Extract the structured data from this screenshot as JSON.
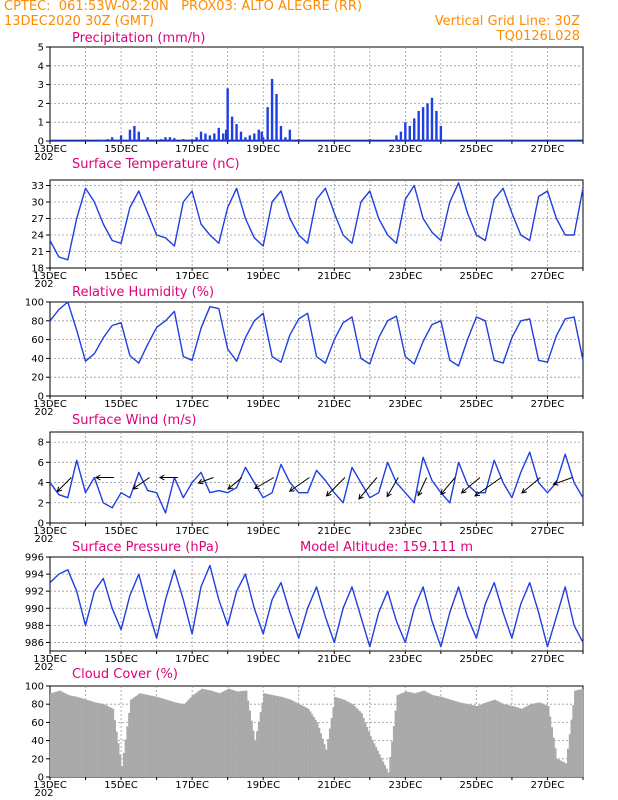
{
  "header": {
    "line1_left": "CPTEC:  061:53W-02:20N   PROX03: ALTO ALEGRE (RR)",
    "line2_left": "13DEC2020 30Z (GMT)",
    "line2_right": "Vertical Grid Line: 30Z",
    "line3_right": "TQ0126L028"
  },
  "colors": {
    "header": "#ff8c00",
    "title": "#e0007a",
    "series": "#1f3fe0",
    "cloud": "#a9a9a9",
    "arrow": "#000000"
  },
  "x_axis": {
    "tick_labels": [
      "13DEC",
      "15DEC",
      "17DEC",
      "19DEC",
      "21DEC",
      "23DEC",
      "25DEC",
      "27DEC"
    ],
    "stray_label": "202"
  },
  "chart_data": [
    {
      "type": "bar",
      "title": "Precipitation (mm/h)",
      "ylim": [
        0,
        5
      ],
      "yticks": [
        "0",
        "1",
        "2",
        "3",
        "4",
        "5"
      ],
      "x": [
        "14DEC12",
        "14DEC15",
        "14DEC18",
        "15DEC00",
        "15DEC06",
        "15DEC09",
        "15DEC12",
        "15DEC18",
        "16DEC03",
        "16DEC06",
        "16DEC09",
        "16DEC12",
        "16DEC18",
        "17DEC00",
        "17DEC03",
        "17DEC06",
        "17DEC09",
        "17DEC12",
        "17DEC15",
        "17DEC18",
        "17DEC21",
        "17DEC23",
        "18DEC00",
        "18DEC03",
        "18DEC06",
        "18DEC09",
        "18DEC12",
        "18DEC15",
        "18DEC18",
        "18DEC21",
        "18DEC23",
        "19DEC00",
        "19DEC03",
        "19DEC06",
        "19DEC09",
        "19DEC12",
        "19DEC15",
        "19DEC18",
        "20DEC00",
        "22DEC00",
        "22DEC18",
        "22DEC21",
        "23DEC00",
        "23DEC03",
        "23DEC06",
        "23DEC09",
        "23DEC12",
        "23DEC15",
        "23DEC18",
        "23DEC21",
        "24DEC00"
      ],
      "values": [
        0.05,
        0.1,
        0.2,
        0.3,
        0.6,
        0.8,
        0.5,
        0.2,
        0.1,
        0.2,
        0.2,
        0.15,
        0.1,
        0.1,
        0.2,
        0.5,
        0.4,
        0.3,
        0.4,
        0.7,
        0.4,
        0.6,
        2.8,
        1.3,
        0.9,
        0.5,
        0.2,
        0.3,
        0.4,
        0.6,
        0.5,
        0.2,
        1.8,
        3.3,
        2.5,
        0.8,
        0.2,
        0.6,
        0.1,
        0.1,
        0.3,
        0.5,
        1.0,
        0.8,
        1.2,
        1.6,
        1.8,
        2.0,
        2.3,
        1.6,
        0.8
      ]
    },
    {
      "type": "line",
      "title": "Surface Temperature (nC)",
      "ylim": [
        18,
        34
      ],
      "yticks": [
        "18",
        "21",
        "24",
        "27",
        "30",
        "33"
      ],
      "x_days": [
        0,
        0.25,
        0.5,
        0.75,
        1,
        1.25,
        1.5,
        1.75,
        2,
        2.25,
        2.5,
        2.75,
        3,
        3.25,
        3.5,
        3.75,
        4,
        4.25,
        4.5,
        4.75,
        5,
        5.25,
        5.5,
        5.75,
        6,
        6.25,
        6.5,
        6.75,
        7,
        7.25,
        7.5,
        7.75,
        8,
        8.25,
        8.5,
        8.75,
        9,
        9.25,
        9.5,
        9.75,
        10,
        10.25,
        10.5,
        10.75,
        11,
        11.25,
        11.5,
        11.75,
        12,
        12.25,
        12.5,
        12.75,
        13,
        13.25,
        13.5,
        13.75,
        14,
        14.25,
        14.5,
        14.75,
        15
      ],
      "series": [
        {
          "values": [
            23,
            20,
            19.5,
            27,
            32.5,
            30,
            26,
            23,
            22.5,
            29,
            32,
            28,
            24,
            23.5,
            22,
            30,
            32,
            26,
            24,
            22.5,
            29,
            32.5,
            27,
            23.5,
            22,
            30,
            32,
            27,
            24,
            22.5,
            30.5,
            32.5,
            28,
            24,
            22.5,
            30,
            32,
            27,
            24,
            22.5,
            30.5,
            33,
            27,
            24.5,
            23,
            30,
            33.5,
            28,
            24,
            23,
            30.5,
            32.5,
            28,
            24,
            23,
            31,
            32,
            27,
            24,
            24,
            32.5
          ]
        }
      ]
    },
    {
      "type": "line",
      "title": "Relative Humidity (%)",
      "ylim": [
        0,
        100
      ],
      "yticks": [
        "0",
        "20",
        "40",
        "60",
        "80",
        "100"
      ],
      "x_days": [
        0,
        0.25,
        0.5,
        0.75,
        1,
        1.25,
        1.5,
        1.75,
        2,
        2.25,
        2.5,
        2.75,
        3,
        3.25,
        3.5,
        3.75,
        4,
        4.25,
        4.5,
        4.75,
        5,
        5.25,
        5.5,
        5.75,
        6,
        6.25,
        6.5,
        6.75,
        7,
        7.25,
        7.5,
        7.75,
        8,
        8.25,
        8.5,
        8.75,
        9,
        9.25,
        9.5,
        9.75,
        10,
        10.25,
        10.5,
        10.75,
        11,
        11.25,
        11.5,
        11.75,
        12,
        12.25,
        12.5,
        12.75,
        13,
        13.25,
        13.5,
        13.75,
        14,
        14.25,
        14.5,
        14.75,
        15
      ],
      "series": [
        {
          "values": [
            80,
            92,
            100,
            70,
            37,
            45,
            62,
            75,
            78,
            43,
            35,
            55,
            73,
            80,
            90,
            42,
            38,
            72,
            95,
            93,
            50,
            37,
            62,
            80,
            88,
            42,
            36,
            65,
            82,
            88,
            42,
            35,
            60,
            78,
            84,
            40,
            34,
            62,
            80,
            85,
            42,
            34,
            58,
            76,
            80,
            38,
            32,
            60,
            84,
            80,
            38,
            35,
            62,
            80,
            82,
            38,
            36,
            64,
            82,
            84,
            38
          ]
        }
      ]
    },
    {
      "type": "line",
      "title": "Surface Wind (m/s)",
      "ylim": [
        0,
        9
      ],
      "yticks": [
        "0",
        "2",
        "4",
        "6",
        "8"
      ],
      "x_days": [
        0,
        0.25,
        0.5,
        0.75,
        1,
        1.25,
        1.5,
        1.75,
        2,
        2.25,
        2.5,
        2.75,
        3,
        3.25,
        3.5,
        3.75,
        4,
        4.25,
        4.5,
        4.75,
        5,
        5.25,
        5.5,
        5.75,
        6,
        6.25,
        6.5,
        6.75,
        7,
        7.25,
        7.5,
        7.75,
        8,
        8.25,
        8.5,
        8.75,
        9,
        9.25,
        9.5,
        9.75,
        10,
        10.25,
        10.5,
        10.75,
        11,
        11.25,
        11.5,
        11.75,
        12,
        12.25,
        12.5,
        12.75,
        13,
        13.25,
        13.5,
        13.75,
        14,
        14.25,
        14.5,
        14.75,
        15
      ],
      "series": [
        {
          "values": [
            4,
            2.8,
            2.5,
            6.2,
            3,
            4.5,
            2,
            1.5,
            3,
            2.5,
            5,
            3.2,
            3,
            1,
            4.5,
            2.5,
            4,
            5,
            3,
            3.2,
            3,
            3.5,
            5.5,
            4,
            2.5,
            3,
            5.8,
            4,
            3,
            3,
            5.2,
            4.2,
            3,
            2,
            5.5,
            4,
            2.5,
            3,
            6,
            4,
            3,
            2,
            6.5,
            4.2,
            3,
            2,
            6,
            3.8,
            3,
            3,
            6.2,
            4,
            2.5,
            5,
            7,
            4,
            3,
            4,
            6.8,
            4,
            2.5
          ]
        }
      ],
      "barbs": {
        "x_days": [
          0.6,
          1.8,
          2.8,
          3.6,
          4.6,
          5.4,
          6.3,
          7.3,
          8.3,
          9.2,
          9.8,
          10.6,
          11.4,
          12.1,
          12.7,
          13.8,
          14.7
        ],
        "angles_deg": [
          225,
          180,
          215,
          180,
          200,
          220,
          210,
          215,
          225,
          230,
          240,
          245,
          230,
          220,
          215,
          220,
          200
        ],
        "lengths": [
          20,
          18,
          20,
          18,
          16,
          18,
          22,
          24,
          26,
          28,
          22,
          20,
          22,
          24,
          32,
          24,
          20
        ]
      }
    },
    {
      "type": "line",
      "title": "Surface Pressure (hPa)",
      "annotation": "Model Altitude: 159.111 m",
      "ylim": [
        985,
        996
      ],
      "yticks": [
        "986",
        "988",
        "990",
        "992",
        "994",
        "996"
      ],
      "x_days": [
        0,
        0.25,
        0.5,
        0.75,
        1,
        1.25,
        1.5,
        1.75,
        2,
        2.25,
        2.5,
        2.75,
        3,
        3.25,
        3.5,
        3.75,
        4,
        4.25,
        4.5,
        4.75,
        5,
        5.25,
        5.5,
        5.75,
        6,
        6.25,
        6.5,
        6.75,
        7,
        7.25,
        7.5,
        7.75,
        8,
        8.25,
        8.5,
        8.75,
        9,
        9.25,
        9.5,
        9.75,
        10,
        10.25,
        10.5,
        10.75,
        11,
        11.25,
        11.5,
        11.75,
        12,
        12.25,
        12.5,
        12.75,
        13,
        13.25,
        13.5,
        13.75,
        14,
        14.25,
        14.5,
        14.75,
        15
      ],
      "series": [
        {
          "values": [
            993,
            994,
            994.5,
            992,
            988,
            992,
            993.5,
            990,
            987.5,
            991.5,
            994,
            990,
            986.5,
            991,
            994.5,
            991,
            987,
            992.5,
            995,
            991,
            988,
            992,
            994,
            990,
            987,
            991,
            993,
            989.5,
            986.5,
            990,
            992.5,
            989,
            986,
            990,
            992.5,
            989,
            985.5,
            989.5,
            992,
            988.5,
            986,
            990,
            992.5,
            988.5,
            985.5,
            989.5,
            992.5,
            989,
            986.5,
            990.5,
            993,
            989.5,
            986.5,
            990.5,
            993,
            989.5,
            985.5,
            989,
            992.5,
            988,
            986
          ]
        }
      ]
    },
    {
      "type": "area",
      "title": "Cloud Cover (%)",
      "ylim": [
        0,
        100
      ],
      "yticks": [
        "0",
        "20",
        "40",
        "60",
        "80",
        "100"
      ],
      "x_days": [
        0,
        0.25,
        0.5,
        0.75,
        1,
        1.25,
        1.5,
        1.75,
        2,
        2.25,
        2.5,
        2.75,
        3,
        3.25,
        3.5,
        3.75,
        4,
        4.25,
        4.5,
        4.75,
        5,
        5.25,
        5.5,
        5.75,
        6,
        6.25,
        6.5,
        6.75,
        7,
        7.25,
        7.5,
        7.75,
        8,
        8.25,
        8.5,
        8.75,
        9,
        9.25,
        9.5,
        9.75,
        10,
        10.25,
        10.5,
        10.75,
        11,
        11.25,
        11.5,
        11.75,
        12,
        12.25,
        12.5,
        12.75,
        13,
        13.25,
        13.5,
        13.75,
        14,
        14.25,
        14.5,
        14.75,
        15
      ],
      "series": [
        {
          "values": [
            92,
            95,
            90,
            88,
            85,
            82,
            80,
            75,
            12,
            85,
            92,
            90,
            88,
            85,
            82,
            80,
            90,
            97,
            95,
            92,
            97,
            94,
            95,
            40,
            92,
            90,
            88,
            85,
            80,
            75,
            60,
            30,
            88,
            85,
            80,
            70,
            45,
            25,
            5,
            90,
            94,
            92,
            95,
            90,
            88,
            85,
            82,
            80,
            78,
            82,
            85,
            80,
            78,
            75,
            80,
            82,
            78,
            20,
            15,
            95,
            97
          ]
        }
      ]
    }
  ]
}
